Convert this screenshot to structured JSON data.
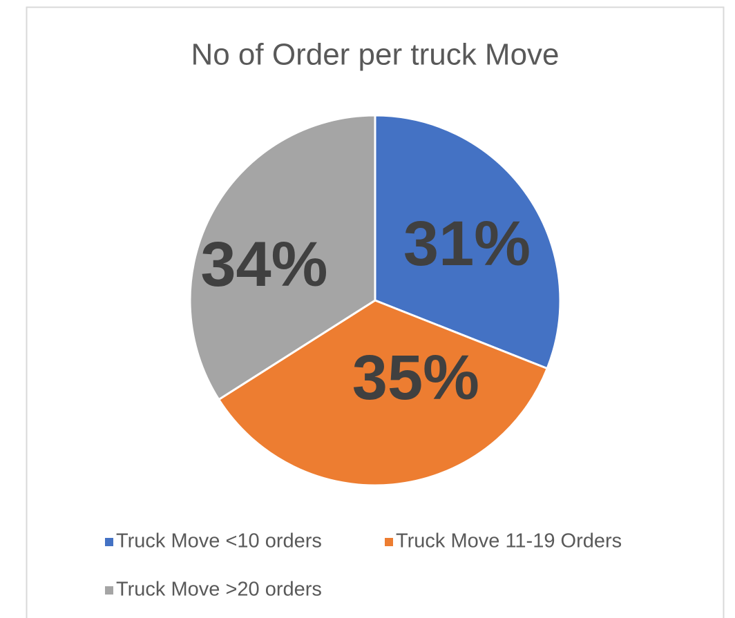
{
  "chart_data": {
    "type": "pie",
    "title": "No of Order per truck Move",
    "categories": [
      "Truck Move <10 orders",
      "Truck Move 11-19 Orders",
      "Truck Move >20 orders"
    ],
    "values": [
      31,
      35,
      34
    ],
    "value_labels": [
      "31%",
      "35%",
      "34%"
    ],
    "colors": [
      "#4472c4",
      "#ed7d31",
      "#a5a5a5"
    ],
    "legend": "bottom"
  }
}
